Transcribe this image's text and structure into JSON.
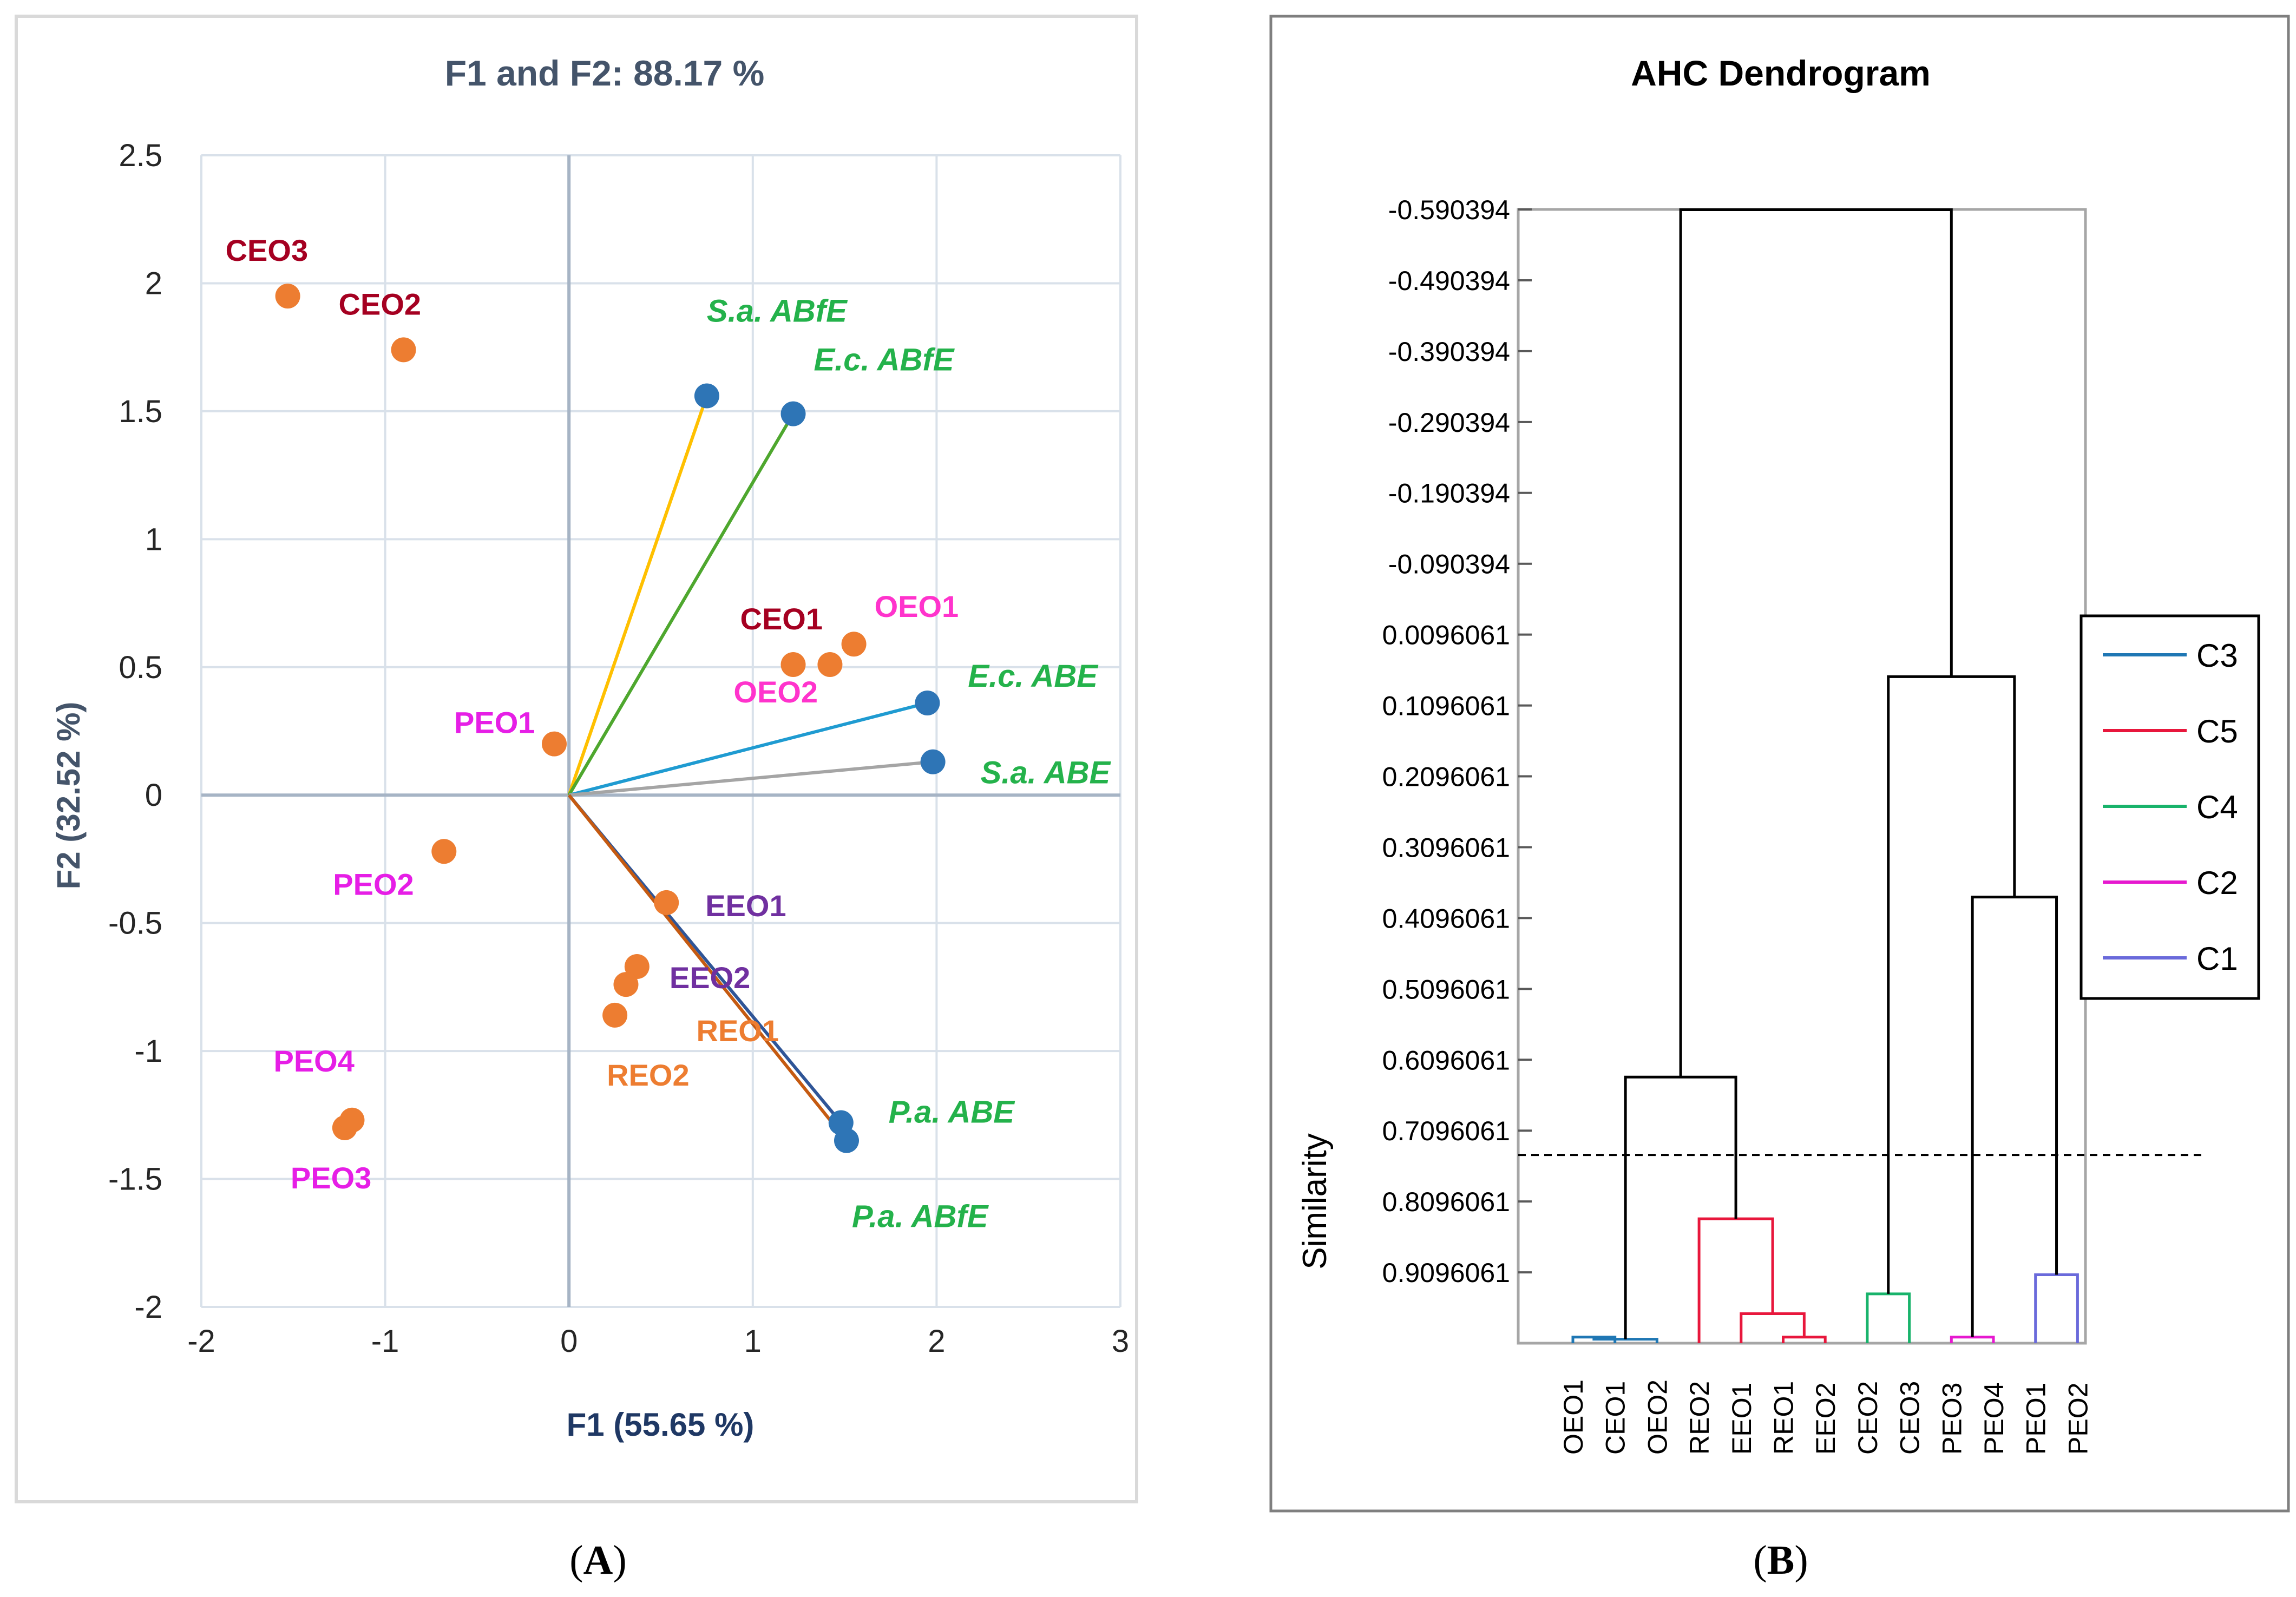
{
  "chart_data": [
    {
      "type": "scatter",
      "subtype": "biplot",
      "panel_label": "A",
      "title": "F1 and F2: 88.17 %",
      "xlabel": "F1 (55.65 %)",
      "ylabel": "F2 (32.52 %)",
      "xlim": [
        -2,
        3
      ],
      "ylim": [
        -2,
        2.5
      ],
      "xticks": [
        -2,
        -1,
        0,
        1,
        2,
        3
      ],
      "yticks": [
        -2,
        -1.5,
        -1,
        -0.5,
        0,
        0.5,
        1,
        1.5,
        2,
        2.5
      ],
      "grid": true,
      "colors": {
        "title": "#44546A",
        "ylabel": "#44546A",
        "xlabel": "#1F3864",
        "observation_marker": "#ED7D31",
        "variable_marker": "#2E75B6",
        "frame": "#D9D9D9",
        "grid": "#D9E1EA",
        "axis": "#A6B4C5"
      },
      "observations": [
        {
          "name": "CEO3",
          "x": -1.53,
          "y": 1.95,
          "color": "#A50021"
        },
        {
          "name": "CEO2",
          "x": -0.9,
          "y": 1.74,
          "color": "#A50021"
        },
        {
          "name": "CEO1",
          "x": 1.22,
          "y": 0.51,
          "color": "#A50021"
        },
        {
          "name": "OEO1",
          "x": 1.55,
          "y": 0.59,
          "color": "#FF33CC"
        },
        {
          "name": "OEO2",
          "x": 1.42,
          "y": 0.51,
          "color": "#FF33CC"
        },
        {
          "name": "PEO1",
          "x": -0.08,
          "y": 0.2,
          "color": "#E61EE6"
        },
        {
          "name": "PEO2",
          "x": -0.68,
          "y": -0.22,
          "color": "#E61EE6"
        },
        {
          "name": "PEO3",
          "x": -1.22,
          "y": -1.3,
          "color": "#E61EE6"
        },
        {
          "name": "PEO4",
          "x": -1.18,
          "y": -1.27,
          "color": "#E61EE6"
        },
        {
          "name": "EEO1",
          "x": 0.53,
          "y": -0.42,
          "color": "#7030A0"
        },
        {
          "name": "EEO2",
          "x": 0.37,
          "y": -0.67,
          "color": "#7030A0"
        },
        {
          "name": "REO1",
          "x": 0.31,
          "y": -0.74,
          "color": "#ED7D31"
        },
        {
          "name": "REO2",
          "x": 0.25,
          "y": -0.86,
          "color": "#ED7D31"
        }
      ],
      "variables": [
        {
          "name": "S.a. ABfE",
          "x": 0.75,
          "y": 1.56,
          "color": "#FFC000"
        },
        {
          "name": "E.c. ABfE",
          "x": 1.22,
          "y": 1.49,
          "color": "#4EA72E"
        },
        {
          "name": "E.c. ABE",
          "x": 1.95,
          "y": 0.36,
          "color": "#1F9BD1"
        },
        {
          "name": "S.a. ABE",
          "x": 1.98,
          "y": 0.13,
          "color": "#A5A5A5"
        },
        {
          "name": "P.a. ABE",
          "x": 1.48,
          "y": -1.28,
          "color": "#2F5597"
        },
        {
          "name": "P.a. ABfE",
          "x": 1.51,
          "y": -1.35,
          "color": "#C55A11"
        }
      ],
      "variable_label_color": "#24B24B"
    },
    {
      "type": "dendrogram",
      "panel_label": "B",
      "title": "AHC Dendrogram",
      "ylabel": "Similarity",
      "yticks": [
        "-0.590394",
        "-0.490394",
        "-0.390394",
        "-0.290394",
        "-0.190394",
        "-0.090394",
        "0.0096061",
        "0.1096061",
        "0.2096061",
        "0.3096061",
        "0.4096061",
        "0.5096061",
        "0.6096061",
        "0.7096061",
        "0.8096061",
        "0.9096061"
      ],
      "y_top": -0.590394,
      "y_bottom": 1.0096061,
      "leaves": [
        "OEO1",
        "CEO1",
        "OEO2",
        "REO2",
        "EEO1",
        "REO1",
        "EEO2",
        "CEO2",
        "CEO3",
        "PEO3",
        "PEO4",
        "PEO1",
        "PEO2"
      ],
      "truncation_similarity": 0.7096,
      "merges": [
        {
          "left": 0,
          "right": 1,
          "similarity": 1.001,
          "color": "#1F77B4"
        },
        {
          "left": 13,
          "right": 2,
          "similarity": 1.004,
          "color": "#1F77B4"
        },
        {
          "left": 5,
          "right": 6,
          "similarity": 1.001,
          "color": "#E8173C"
        },
        {
          "left": 4,
          "right": 15,
          "similarity": 0.968,
          "color": "#E8173C"
        },
        {
          "left": 3,
          "right": 16,
          "similarity": 0.834,
          "color": "#E8173C"
        },
        {
          "left": 7,
          "right": 8,
          "similarity": 0.94,
          "color": "#18B36B"
        },
        {
          "left": 9,
          "right": 10,
          "similarity": 1.001,
          "color": "#E619CF"
        },
        {
          "left": 11,
          "right": 12,
          "similarity": 0.913,
          "color": "#6A6ADB"
        },
        {
          "left": 14,
          "right": 17,
          "similarity": 0.634,
          "color": "#000000"
        },
        {
          "left": 19,
          "right": 20,
          "similarity": 0.38,
          "color": "#000000"
        },
        {
          "left": 18,
          "right": 22,
          "similarity": 0.069,
          "color": "#000000"
        },
        {
          "left": 21,
          "right": 23,
          "similarity": -0.59,
          "color": "#000000"
        }
      ],
      "legend": [
        {
          "label": "C3",
          "color": "#1F77B4"
        },
        {
          "label": "C5",
          "color": "#E8173C"
        },
        {
          "label": "C4",
          "color": "#18B36B"
        },
        {
          "label": "C2",
          "color": "#E619CF"
        },
        {
          "label": "C1",
          "color": "#6A6ADB"
        }
      ],
      "legend_position": "right"
    }
  ]
}
